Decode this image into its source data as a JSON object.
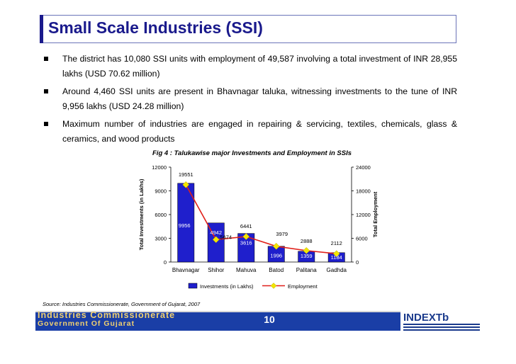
{
  "title": "Small Scale Industries (SSI)",
  "bullets": [
    "The district has 10,080 SSI units with employment of  49,587 involving a total investment of INR 28,955 lakhs (USD 70.62 million)",
    "Around 4,460 SSI units are present in Bhavnagar taluka, witnessing investments to the tune of INR 9,956 lakhs (USD 24.28 million)",
    "Maximum number of industries are engaged in repairing & servicing, textiles, chemicals, glass & ceramics, and wood products"
  ],
  "chart_title": "Fig 4 : Talukawise major Investments and Employment in SSIs",
  "source": "Source: Industries Commissionerate, Government of Gujarat, 2007",
  "footer": {
    "org_line1": "Industries Commissionerate",
    "org_line2": "Government Of Gujarat",
    "page_number": "10",
    "logo_text": "INDEXTb"
  },
  "colors": {
    "title": "#1a1a8c",
    "bar": "#1f1fcc",
    "line": "#e0201a",
    "marker": "#f2e600",
    "footer_band": "#1a3ea6"
  },
  "chart_data": {
    "type": "bar",
    "categories": [
      "Bhavnagar",
      "Shihor",
      "Mahuva",
      "Batod",
      "Palitana",
      "Gadhda"
    ],
    "series": [
      {
        "name": "Investments (in Lakhs)",
        "kind": "bar",
        "axis": "left",
        "values": [
          9956,
          4942,
          3616,
          1996,
          1359,
          1184
        ]
      },
      {
        "name": "Employment",
        "kind": "line",
        "axis": "right",
        "values": [
          19551,
          5674,
          6441,
          3979,
          2888,
          2112
        ]
      }
    ],
    "y_left_label": "Total Investments (in Lakhs)",
    "y_right_label": "Total Employment",
    "y_left_ticks": [
      "0",
      "3000",
      "6000",
      "9000",
      "12000"
    ],
    "y_right_ticks": [
      "0",
      "6000",
      "12000",
      "18000",
      "24000"
    ],
    "y_left_range": [
      0,
      12000
    ],
    "y_right_range": [
      0,
      24000
    ],
    "legend_position": "bottom"
  }
}
